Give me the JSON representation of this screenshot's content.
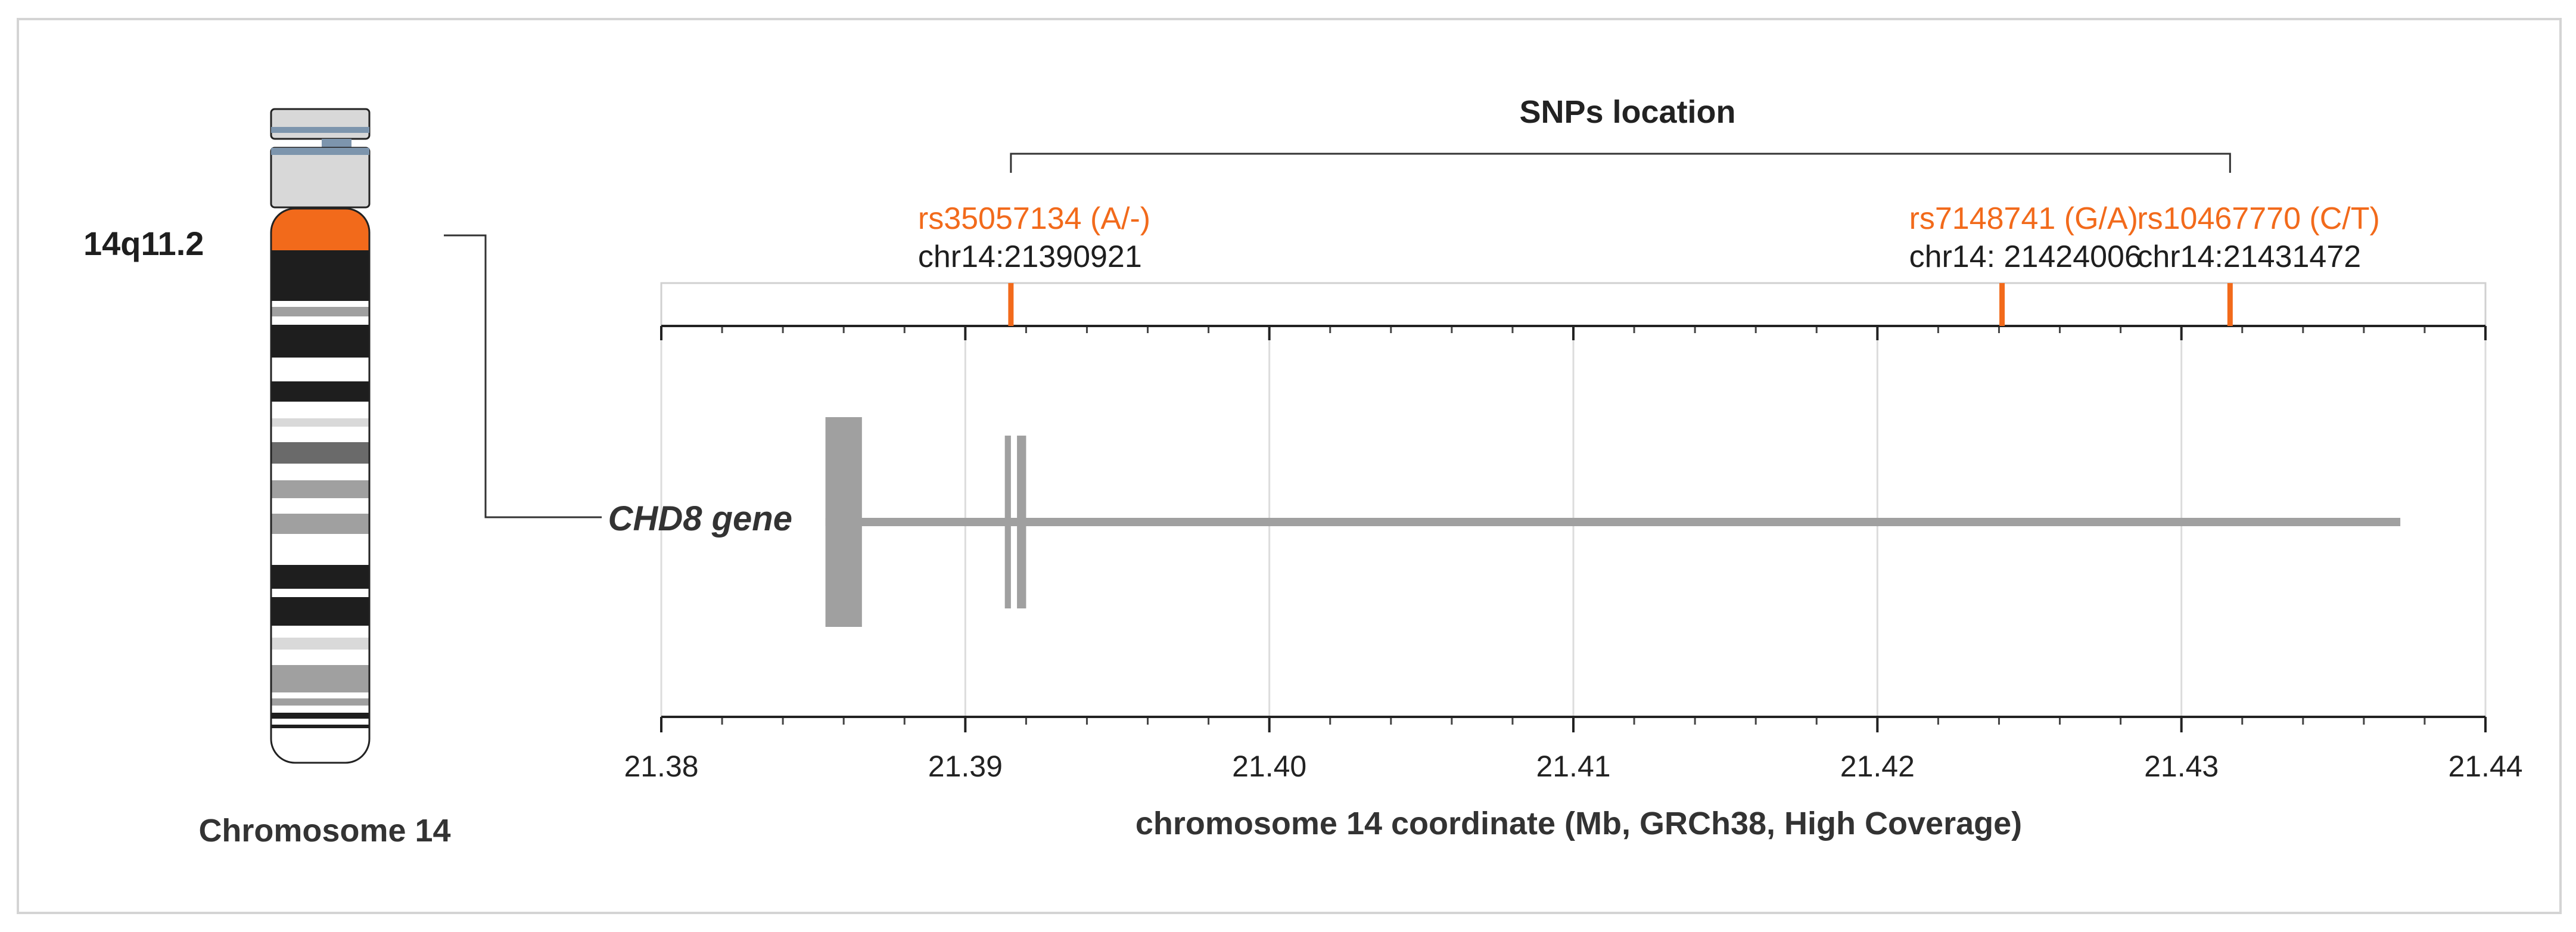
{
  "chromosome": {
    "label": "Chromosome 14",
    "band_label": "14q11.2",
    "colors": {
      "highlight": "#f26a1b",
      "dark": "#1e1e1e",
      "mid": "#6a6a6a",
      "light": "#a0a0a0",
      "pale": "#d9d9d9",
      "cap": "#d8d8d8",
      "centromere": "#7d95ad"
    }
  },
  "gene": {
    "label": "CHD8 gene",
    "start_mb": 21.3854,
    "end_mb": 21.4372,
    "exons_mb": [
      [
        21.3854,
        21.3866
      ],
      [
        21.3913,
        21.3915
      ],
      [
        21.3917,
        21.392
      ]
    ],
    "color": "#a0a0a0"
  },
  "snps": {
    "title": "SNPs location",
    "color": "#f26a1b",
    "items": [
      {
        "id": "rs35057134 (A/-)",
        "coord": "chr14:21390921",
        "position_mb": 21.3915
      },
      {
        "id": "rs7148741 (G/A)",
        "coord": "chr14: 21424006",
        "position_mb": 21.4241
      },
      {
        "id": "rs10467770 (C/T)",
        "coord": "chr14:21431472",
        "position_mb": 21.4316
      }
    ]
  },
  "axis": {
    "label": "chromosome 14 coordinate (Mb, GRCh38, High Coverage)",
    "min": 21.38,
    "max": 21.44,
    "ticks": [
      "21.38",
      "21.39",
      "21.40",
      "21.41",
      "21.42",
      "21.43",
      "21.44"
    ]
  }
}
